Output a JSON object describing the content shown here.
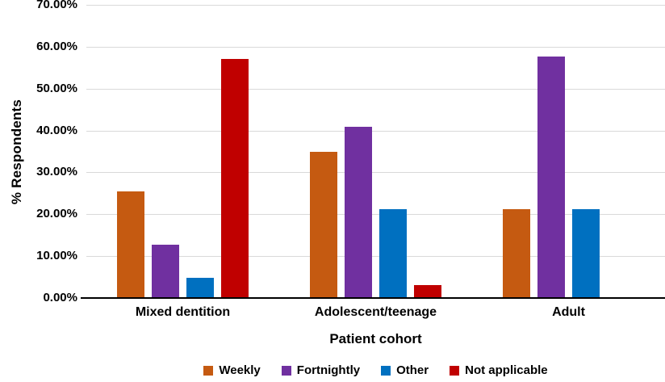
{
  "chart_data": {
    "type": "bar",
    "title": "",
    "xlabel": "Patient cohort",
    "ylabel": "% Respondents",
    "categories": [
      "Mixed dentition",
      "Adolescent/teenage",
      "Adult"
    ],
    "series": [
      {
        "name": "Weekly",
        "color": "#C55A11",
        "values": [
          25.4,
          34.85,
          21.21
        ]
      },
      {
        "name": "Fortnightly",
        "color": "#7030A0",
        "values": [
          12.7,
          40.91,
          57.58
        ]
      },
      {
        "name": "Other",
        "color": "#0070C0",
        "values": [
          4.76,
          21.21,
          21.21
        ]
      },
      {
        "name": "Not applicable",
        "color": "#C00000",
        "values": [
          57.14,
          3.03,
          0
        ]
      }
    ],
    "y_axis": {
      "min": 0,
      "max": 70,
      "step": 10,
      "tick_labels": [
        "0.00%",
        "10.00%",
        "20.00%",
        "30.00%",
        "40.00%",
        "50.00%",
        "60.00%",
        "70.00%"
      ]
    },
    "grid": true,
    "gridline_color": "#D9D9D9",
    "axis_line_color": "#000000",
    "legend_position": "bottom"
  }
}
